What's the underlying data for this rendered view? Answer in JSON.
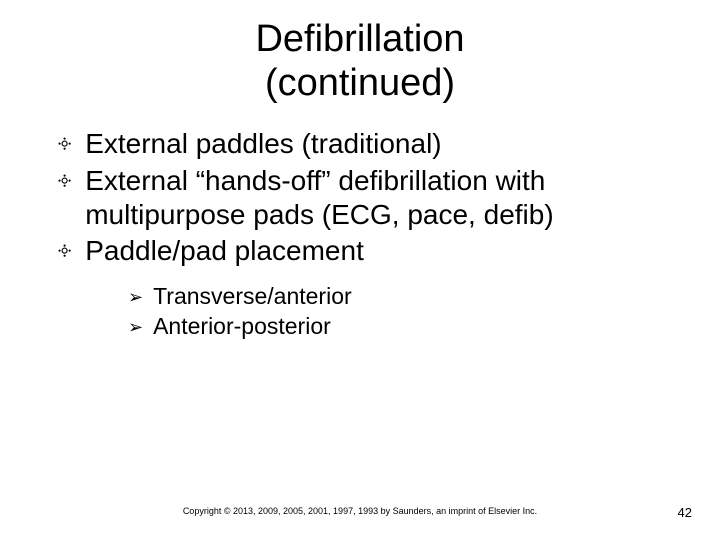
{
  "title_line1": "Defibrillation",
  "title_line2": "(continued)",
  "bullets": {
    "main": [
      "External paddles (traditional)",
      "External “hands-off” defibrillation with multipurpose pads (ECG, pace, defib)",
      "Paddle/pad placement"
    ],
    "sub": [
      "Transverse/anterior",
      "Anterior-posterior"
    ]
  },
  "glyphs": {
    "main_bullet": "༓",
    "sub_bullet": "➢"
  },
  "copyright": "Copyright © 2013, 2009, 2005, 2001, 1997, 1993 by Saunders, an imprint of Elsevier Inc.",
  "page_number": "42",
  "colors": {
    "background": "#ffffff",
    "text": "#000000"
  },
  "typography": {
    "title_fontsize": 38,
    "main_fontsize": 28,
    "sub_fontsize": 23,
    "copyright_fontsize": 9,
    "pagenum_fontsize": 13,
    "font_family": "Arial"
  }
}
